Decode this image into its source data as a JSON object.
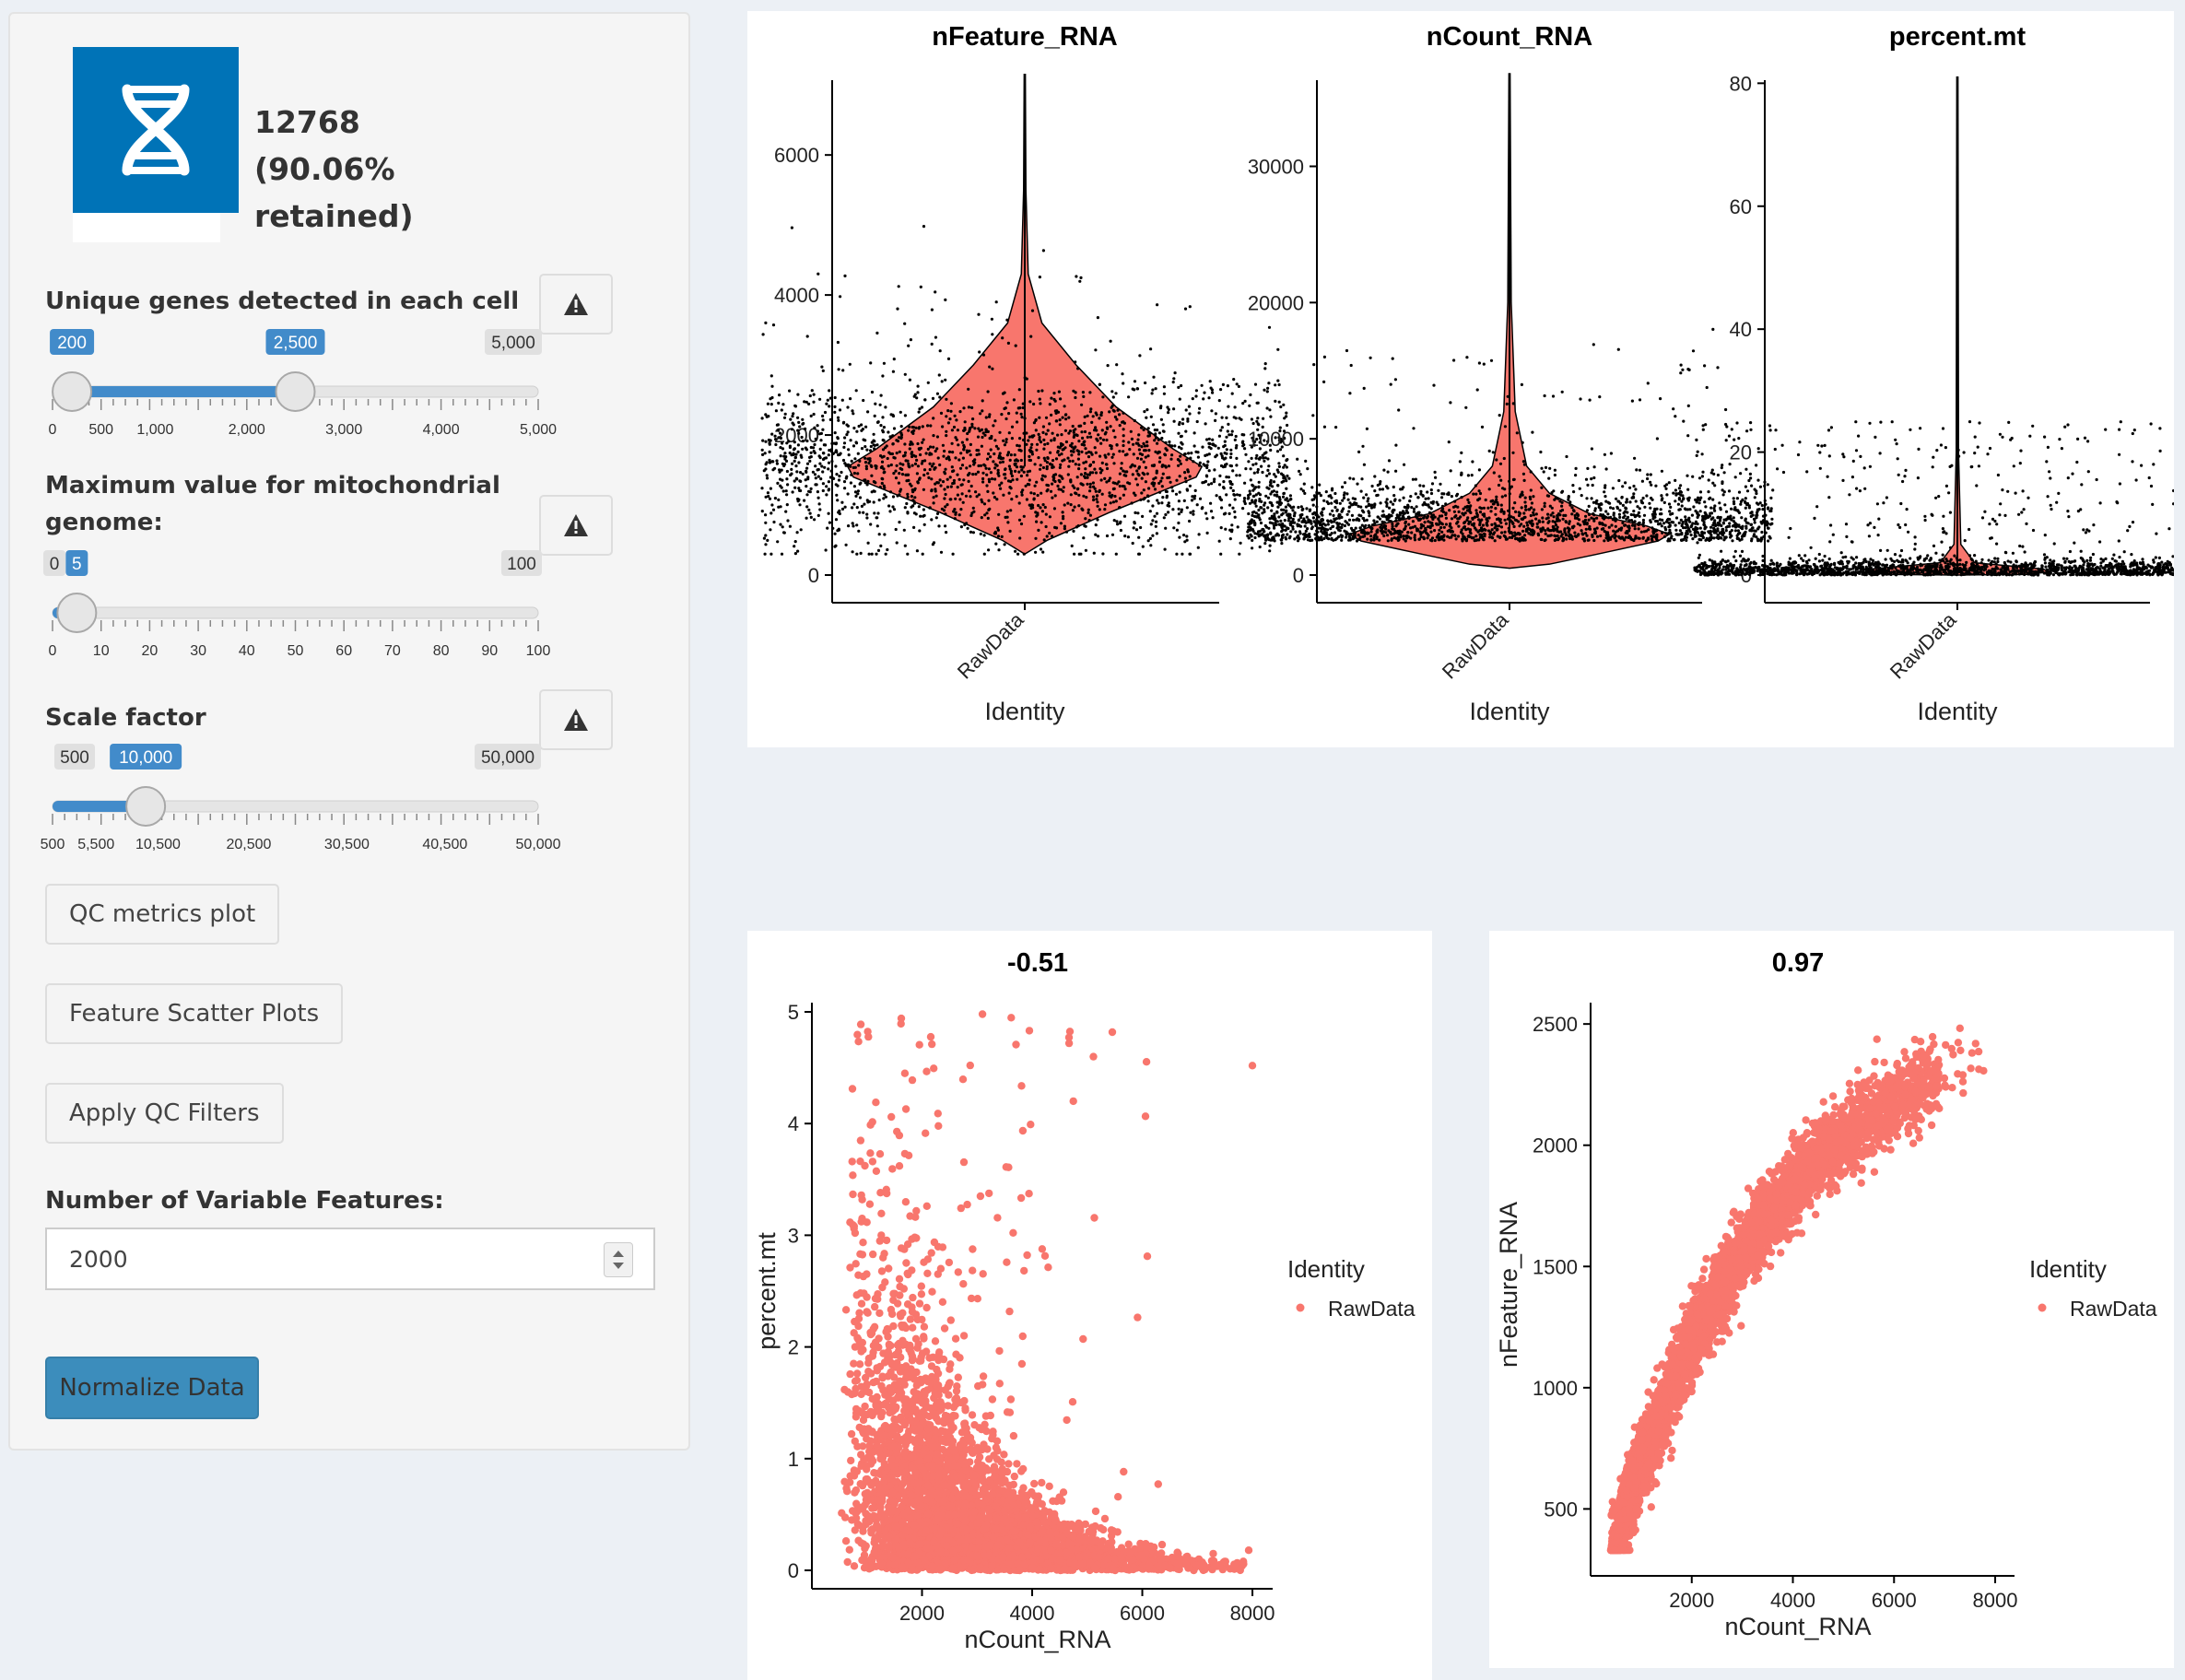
{
  "sidebar": {
    "infobox": {
      "icon": "dna-icon",
      "line1": "12768",
      "line2": "(90.06%",
      "line3": "retained)",
      "color": "#0073b7"
    },
    "genes_filter": {
      "label": "Unique genes detected in each cell",
      "min": 0,
      "max": 5000,
      "from": 200,
      "to": 2500,
      "from_label": "200",
      "to_label": "2,500",
      "max_label": "5,000",
      "ticks": [
        "0",
        "500",
        "1,000",
        "2,000",
        "3,000",
        "4,000",
        "5,000"
      ]
    },
    "mito_filter": {
      "label_line1": "Maximum value for mitochondrial",
      "label_line2": "genome:",
      "min": 0,
      "max": 100,
      "value": 5,
      "min_label": "0",
      "value_label": "5",
      "max_label": "100",
      "ticks": [
        "0",
        "10",
        "20",
        "30",
        "40",
        "50",
        "60",
        "70",
        "80",
        "90",
        "100"
      ]
    },
    "scale_factor": {
      "label": "Scale factor",
      "min": 500,
      "max": 50000,
      "value": 10000,
      "min_label": "500",
      "value_label": "10,000",
      "max_label": "50,000",
      "ticks": [
        "500",
        "5,500",
        "10,500",
        "20,500",
        "30,500",
        "40,500",
        "50,000"
      ]
    },
    "warning_icon": "warning-triangle-icon",
    "buttons": {
      "qc_metrics": "QC metrics plot",
      "feature_scatter": "Feature Scatter Plots",
      "apply_qc": "Apply QC Filters",
      "normalize": "Normalize Data"
    },
    "variable_features": {
      "label": "Number of Variable Features:",
      "value": "2000"
    }
  },
  "violin": {
    "xlabel": "Identity",
    "category": "RawData",
    "panels": [
      {
        "title": "nFeature_RNA",
        "ylim": [
          0,
          7200
        ],
        "yticks": [
          0,
          2000,
          4000,
          6000
        ],
        "median": 1550,
        "max": 7150
      },
      {
        "title": "nCount_RNA",
        "ylim": [
          0,
          37000
        ],
        "yticks": [
          0,
          10000,
          20000,
          30000
        ],
        "median": 3000,
        "max": 36800
      },
      {
        "title": "percent.mt",
        "ylim": [
          0,
          82
        ],
        "yticks": [
          0,
          20,
          40,
          60,
          80
        ],
        "median": 0.5,
        "max": 81
      }
    ]
  },
  "chart_data": [
    {
      "type": "scatter",
      "title": "-0.51",
      "xlabel": "nCount_RNA",
      "ylabel": "percent.mt",
      "xlim": [
        0,
        8200
      ],
      "ylim": [
        0,
        5
      ],
      "xticks": [
        2000,
        4000,
        6000,
        8000
      ],
      "yticks": [
        0,
        1,
        2,
        3,
        4,
        5
      ],
      "legend_title": "Identity",
      "legend_entry": "RawData",
      "legend_position": "right",
      "color": "#f8766d",
      "pearson_r": -0.51
    },
    {
      "type": "scatter",
      "title": "0.97",
      "xlabel": "nCount_RNA",
      "ylabel": "nFeature_RNA",
      "xlim": [
        0,
        8200
      ],
      "ylim": [
        300,
        2550
      ],
      "xticks": [
        2000,
        4000,
        6000,
        8000
      ],
      "yticks": [
        500,
        1000,
        1500,
        2000,
        2500
      ],
      "legend_title": "Identity",
      "legend_entry": "RawData",
      "legend_position": "right",
      "color": "#f8766d",
      "pearson_r": 0.97
    }
  ]
}
